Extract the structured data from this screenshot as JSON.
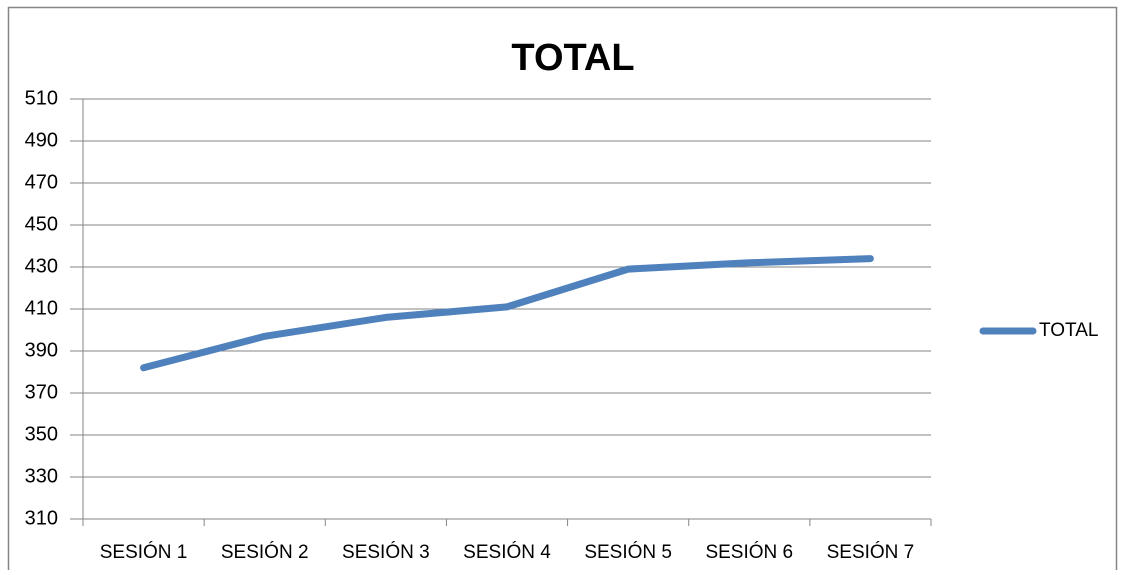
{
  "chart_data": {
    "type": "line",
    "title": "TOTAL",
    "categories": [
      "SESIÓN 1",
      "SESIÓN 2",
      "SESIÓN 3",
      "SESIÓN 4",
      "SESIÓN 5",
      "SESIÓN 6",
      "SESIÓN 7"
    ],
    "series": [
      {
        "name": "TOTAL",
        "color": "#4f81bd",
        "values": [
          382,
          397,
          406,
          411,
          429,
          432,
          434
        ]
      }
    ],
    "ylim": [
      310,
      510
    ],
    "yticks": [
      310,
      330,
      350,
      370,
      390,
      410,
      430,
      450,
      470,
      490,
      510
    ],
    "grid": true,
    "legend": "right"
  }
}
